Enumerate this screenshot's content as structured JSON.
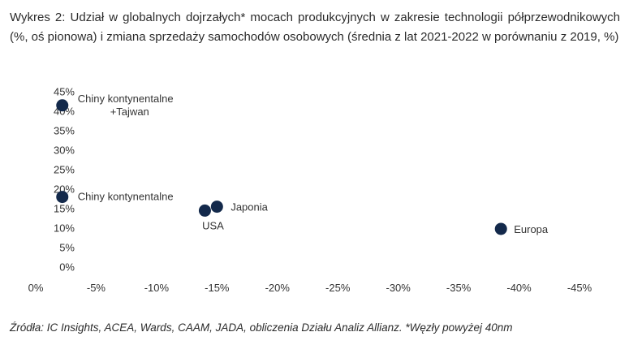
{
  "title": "Wykres 2: Udział w globalnych dojrzałych* mocach produkcyjnych w zakresie technologii półprzewodnikowych (%, oś pionowa) i zmiana sprzedaży samochodów osobowych (średnia z lat 2021-2022 w porównaniu z 2019, %)",
  "source": "Źródła: IC Insights, ACEA, Wards, CAAM, JADA, obliczenia Działu Analiz Allianz. *Węzły powyżej 40nm",
  "chart_data": {
    "type": "scatter",
    "xlabel": "",
    "ylabel": "",
    "xlim": [
      0,
      -45
    ],
    "ylim": [
      0,
      45
    ],
    "x_ticks": [
      0,
      -5,
      -10,
      -15,
      -20,
      -25,
      -30,
      -35,
      -40,
      -45
    ],
    "x_tick_labels": [
      "0%",
      "-5%",
      "-10%",
      "-15%",
      "-20%",
      "-25%",
      "-30%",
      "-35%",
      "-40%",
      "-45%"
    ],
    "y_ticks": [
      0,
      5,
      10,
      15,
      20,
      25,
      30,
      35,
      40,
      45
    ],
    "y_tick_labels": [
      "0%",
      "5%",
      "10%",
      "15%",
      "20%",
      "25%",
      "30%",
      "35%",
      "40%",
      "45%"
    ],
    "grid": false,
    "marker_color": "#13294b",
    "points": [
      {
        "label": "Chiny kontynentalne +Tajwan",
        "label_lines": [
          "Chiny kontynentalne",
          "+Tajwan"
        ],
        "x": -2.2,
        "y": 41.5
      },
      {
        "label": "Chiny kontynentalne",
        "label_lines": [
          "Chiny kontynentalne"
        ],
        "x": -2.2,
        "y": 18
      },
      {
        "label": "USA",
        "label_lines": [
          "USA"
        ],
        "x": -14,
        "y": 14.5
      },
      {
        "label": "Japonia",
        "label_lines": [
          "Japonia"
        ],
        "x": -15,
        "y": 15.5
      },
      {
        "label": "Europa",
        "label_lines": [
          "Europa"
        ],
        "x": -38.5,
        "y": 9.8
      }
    ]
  }
}
